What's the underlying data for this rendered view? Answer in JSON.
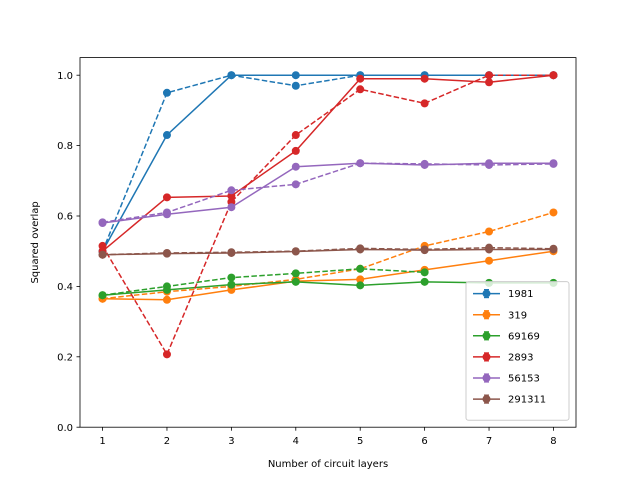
{
  "chart_data": {
    "type": "line",
    "title": "",
    "xlabel": "Number of circuit layers",
    "ylabel": "Squared overlap",
    "x": [
      1,
      2,
      3,
      4,
      5,
      6,
      7,
      8
    ],
    "xlim": [
      0.65,
      8.35
    ],
    "ylim": [
      0.0,
      1.05
    ],
    "xticks": [
      "1",
      "2",
      "3",
      "4",
      "5",
      "6",
      "7",
      "8"
    ],
    "yticks": [
      "0.0",
      "0.2",
      "0.4",
      "0.6",
      "0.8",
      "1.0"
    ],
    "grid": false,
    "legend_position": "lower-right",
    "series": [
      {
        "name": "1981",
        "color": "#1f77b4",
        "solid": [
          0.5,
          0.83,
          1.0,
          1.0,
          1.0,
          1.0,
          1.0,
          1.0
        ],
        "dashed": [
          0.5,
          0.95,
          1.0,
          0.97,
          1.0,
          1.0,
          1.0,
          1.0
        ]
      },
      {
        "name": "319",
        "color": "#ff7f0e",
        "solid": [
          0.365,
          0.362,
          0.39,
          0.415,
          0.42,
          0.447,
          0.473,
          0.5
        ],
        "dashed": [
          0.365,
          0.385,
          0.4,
          0.42,
          0.45,
          0.515,
          0.556,
          0.61
        ]
      },
      {
        "name": "69169",
        "color": "#2ca02c",
        "solid": [
          0.375,
          0.39,
          0.405,
          0.413,
          0.403,
          0.413,
          0.41,
          0.41
        ],
        "dashed": [
          0.375,
          0.4,
          0.425,
          0.437,
          0.45,
          0.44,
          null,
          null
        ]
      },
      {
        "name": "2893",
        "color": "#d62728",
        "solid": [
          0.5,
          0.653,
          0.657,
          0.785,
          0.99,
          0.99,
          0.98,
          1.0
        ],
        "dashed": [
          0.515,
          0.207,
          0.64,
          0.83,
          0.96,
          0.92,
          1.0,
          1.0
        ]
      },
      {
        "name": "56153",
        "color": "#9467bd",
        "solid": [
          0.58,
          0.605,
          0.625,
          0.74,
          0.75,
          0.745,
          0.75,
          0.75
        ],
        "dashed": [
          0.582,
          0.61,
          0.673,
          0.69,
          0.75,
          0.748,
          0.745,
          0.748
        ]
      },
      {
        "name": "291311",
        "color": "#8c564b",
        "solid": [
          0.49,
          0.493,
          0.495,
          0.499,
          0.505,
          0.503,
          0.505,
          0.505
        ],
        "dashed": [
          0.49,
          0.495,
          0.497,
          0.5,
          0.508,
          0.505,
          0.51,
          0.507
        ]
      }
    ]
  }
}
